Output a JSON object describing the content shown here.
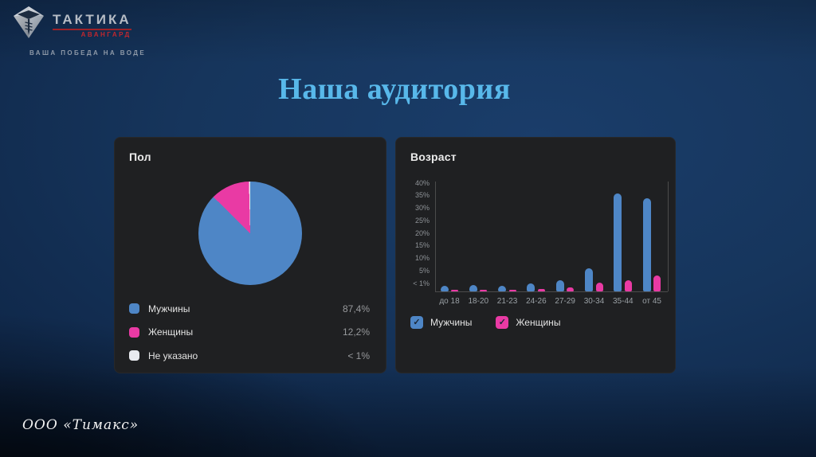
{
  "slide": {
    "title": "Наша аудитория",
    "footer": "ООО «Тимакс»"
  },
  "logo": {
    "brand": "ТАКТИКА",
    "sub_brand": "АВАНГАРД",
    "tagline": "ВАША ПОБЕДА НА ВОДЕ"
  },
  "colors": {
    "men": "#4e86c6",
    "women": "#e93aa4",
    "unspecified": "#e9ebf0",
    "title_accent": "#58b8ea",
    "panel_bg": "#1f2022",
    "axis": "#4b4b4b"
  },
  "chart_data": [
    {
      "type": "pie",
      "title": "Пол",
      "slices": [
        {
          "label": "Мужчины",
          "value": 87.4,
          "display": "87,4%",
          "color_key": "men"
        },
        {
          "label": "Женщины",
          "value": 12.2,
          "display": "12,2%",
          "color_key": "women"
        },
        {
          "label": "Не указано",
          "value": 0.4,
          "display": "< 1%",
          "color_key": "unspecified"
        }
      ]
    },
    {
      "type": "bar",
      "title": "Возраст",
      "categories": [
        "до 18",
        "18-20",
        "21-23",
        "24-26",
        "27-29",
        "30-34",
        "35-44",
        "от 45"
      ],
      "y_tick_labels": [
        "40%",
        "35%",
        "30%",
        "25%",
        "20%",
        "15%",
        "10%",
        "5%",
        "< 1%"
      ],
      "ylim": [
        0,
        42
      ],
      "grid": false,
      "legend_position": "bottom",
      "series": [
        {
          "name": "Мужчины",
          "color_key": "men",
          "values": [
            0.7,
            0.8,
            0.7,
            1.0,
            2.0,
            6.0,
            36.0,
            34.0
          ]
        },
        {
          "name": "Женщины",
          "color_key": "women",
          "values": [
            0.15,
            0.2,
            0.2,
            0.3,
            0.5,
            1.3,
            2.0,
            3.5
          ]
        }
      ],
      "legend": [
        {
          "label": "Мужчины",
          "color_key": "men",
          "checked": true
        },
        {
          "label": "Женщины",
          "color_key": "women",
          "checked": true
        }
      ]
    }
  ]
}
